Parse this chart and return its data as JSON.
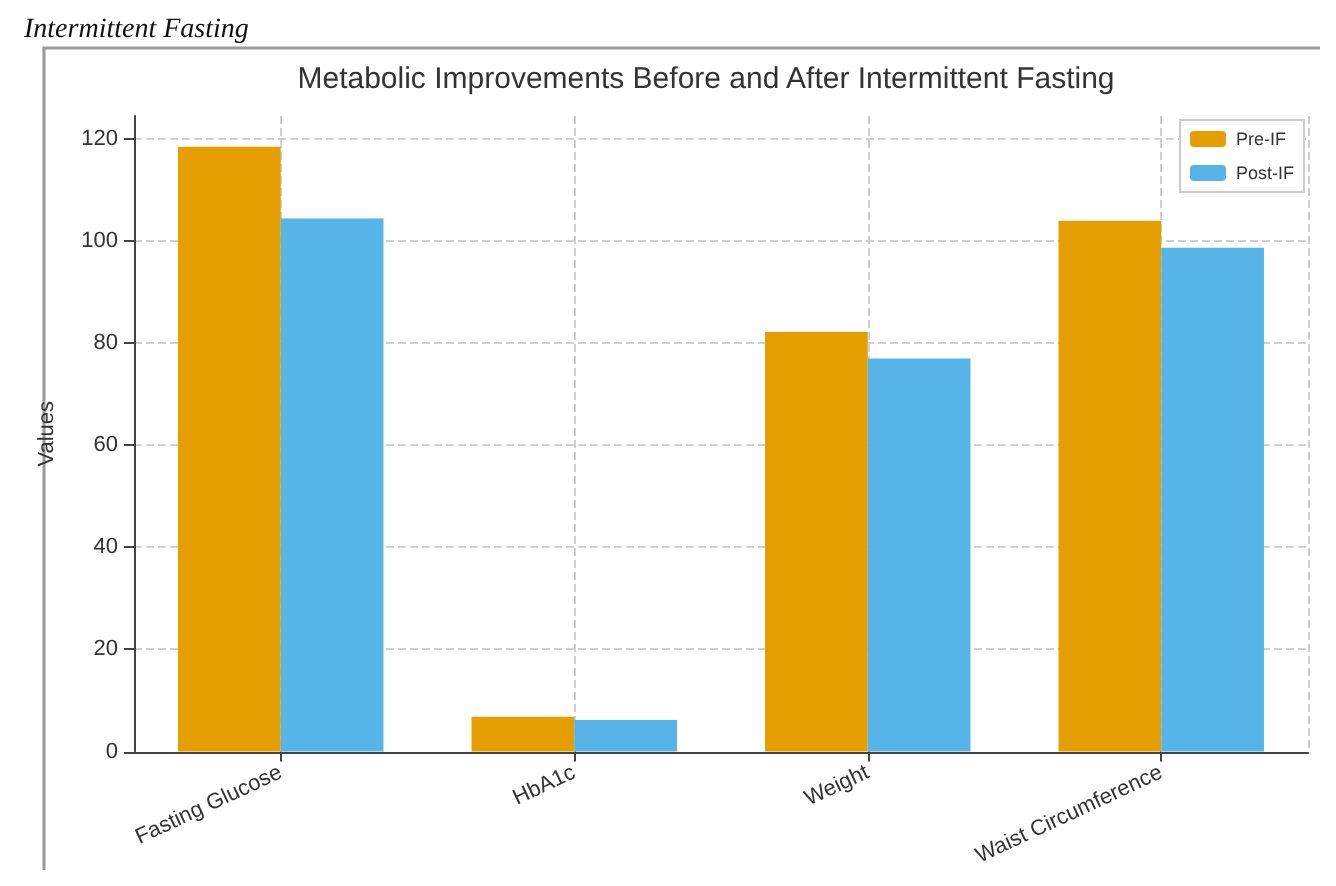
{
  "chart_data": {
    "type": "bar",
    "title": "Metabolic Improvements Before and After Intermittent Fasting",
    "ylabel": "Values",
    "annotations": [
      "Intermittent Fasting"
    ],
    "categories": [
      "Fasting Glucose",
      "HbA1c",
      "Weight",
      "Waist Circumference"
    ],
    "series": [
      {
        "name": "Pre-IF",
        "color": "#e69f00",
        "values": [
          118.5,
          6.8,
          82.2,
          104
        ]
      },
      {
        "name": "Post-IF",
        "color": "#56b4e9",
        "values": [
          104.4,
          6.2,
          77,
          98.7
        ]
      }
    ],
    "ylim": [
      0,
      124.5
    ],
    "yticks": [
      0,
      20,
      40,
      60,
      80,
      100,
      120
    ],
    "grid": true,
    "legend": "top right"
  }
}
